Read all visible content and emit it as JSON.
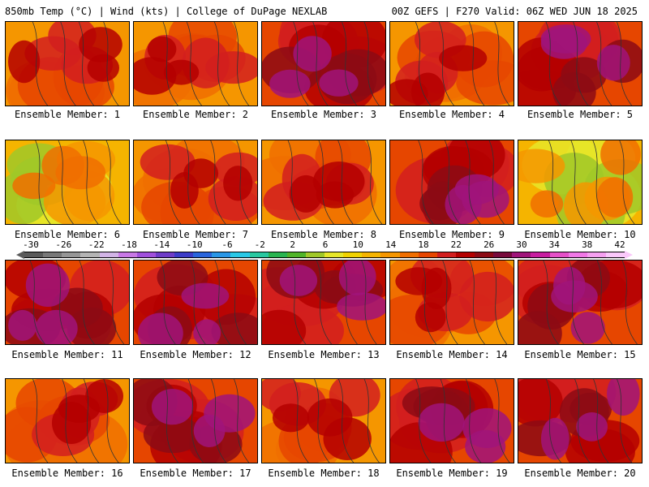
{
  "header": {
    "left": "850mb Temp (°C) | Wind (kts) | College of DuPage NEXLAB",
    "right": "00Z GEFS | F270 Valid: 06Z WED JUN 18 2025"
  },
  "colorbar": {
    "ticks": [
      "-30",
      "-26",
      "-22",
      "-18",
      "-14",
      "-10",
      "-6",
      "-2",
      "2",
      "6",
      "10",
      "14",
      "18",
      "22",
      "26",
      "30",
      "34",
      "38",
      "42"
    ],
    "colors": [
      "#5a5a5a",
      "#787878",
      "#969696",
      "#b4b4b4",
      "#d2b4e6",
      "#c878e6",
      "#a050dc",
      "#6e3cc8",
      "#3c3cc8",
      "#2864dc",
      "#2896e6",
      "#28c8e6",
      "#28c8a0",
      "#28b450",
      "#50b428",
      "#a0c828",
      "#e6e628",
      "#f0d200",
      "#f5b400",
      "#f59600",
      "#f06e00",
      "#e64600",
      "#d21e1e",
      "#b40000",
      "#8c0a14",
      "#780a3c",
      "#a0147a",
      "#c81ea0",
      "#e650c8",
      "#f078e6",
      "#f5a0f0",
      "#fac8fa"
    ]
  },
  "members": [
    {
      "label": "Ensemble Member: 1",
      "tone": "warm"
    },
    {
      "label": "Ensemble Member: 2",
      "tone": "warm"
    },
    {
      "label": "Ensemble Member: 3",
      "tone": "hot"
    },
    {
      "label": "Ensemble Member: 4",
      "tone": "warm"
    },
    {
      "label": "Ensemble Member: 5",
      "tone": "hot"
    },
    {
      "label": "Ensemble Member: 6",
      "tone": "mild"
    },
    {
      "label": "Ensemble Member: 7",
      "tone": "warm"
    },
    {
      "label": "Ensemble Member: 8",
      "tone": "warm"
    },
    {
      "label": "Ensemble Member: 9",
      "tone": "hot"
    },
    {
      "label": "Ensemble Member: 10",
      "tone": "mild"
    },
    {
      "label": "Ensemble Member: 11",
      "tone": "hot"
    },
    {
      "label": "Ensemble Member: 12",
      "tone": "hot"
    },
    {
      "label": "Ensemble Member: 13",
      "tone": "hot"
    },
    {
      "label": "Ensemble Member: 14",
      "tone": "warm"
    },
    {
      "label": "Ensemble Member: 15",
      "tone": "hot"
    },
    {
      "label": "Ensemble Member: 16",
      "tone": "warm"
    },
    {
      "label": "Ensemble Member: 17",
      "tone": "hot"
    },
    {
      "label": "Ensemble Member: 18",
      "tone": "warm"
    },
    {
      "label": "Ensemble Member: 19",
      "tone": "hot"
    },
    {
      "label": "Ensemble Member: 20",
      "tone": "hot"
    }
  ],
  "palette": {
    "mild": [
      "#f5b400",
      "#e6e628",
      "#a0c828",
      "#f59600",
      "#f06e00"
    ],
    "warm": [
      "#f59600",
      "#f06e00",
      "#e64600",
      "#d21e1e",
      "#b40000"
    ],
    "hot": [
      "#e64600",
      "#d21e1e",
      "#b40000",
      "#8c0a14",
      "#a0147a"
    ]
  }
}
